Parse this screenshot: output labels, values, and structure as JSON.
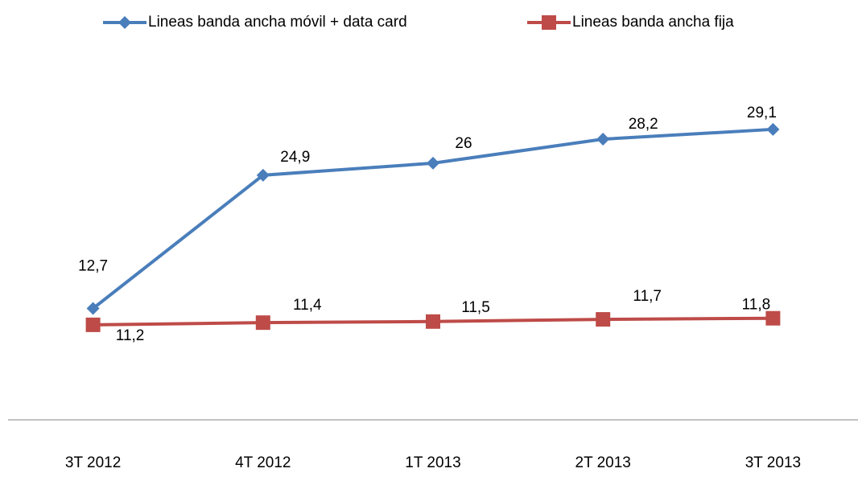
{
  "chart_data": {
    "type": "line",
    "categories": [
      "3T 2012",
      "4T 2012",
      "1T 2013",
      "2T 2013",
      "3T 2013"
    ],
    "series": [
      {
        "name": "Lineas banda ancha móvil + data card",
        "color": "#4a7ebb",
        "marker": "diamond",
        "values": [
          12.7,
          24.9,
          26,
          28.2,
          29.1
        ],
        "value_labels": [
          "12,7",
          "24,9",
          "26",
          "28,2",
          "29,1"
        ]
      },
      {
        "name": "Lineas banda ancha fija",
        "color": "#be4b48",
        "marker": "square",
        "values": [
          11.2,
          11.4,
          11.5,
          11.7,
          11.8
        ],
        "value_labels": [
          "11,2",
          "11,4",
          "11,5",
          "11,7",
          "11,8"
        ]
      }
    ],
    "ylim": [
      2.5,
      35
    ],
    "legend": "top"
  }
}
